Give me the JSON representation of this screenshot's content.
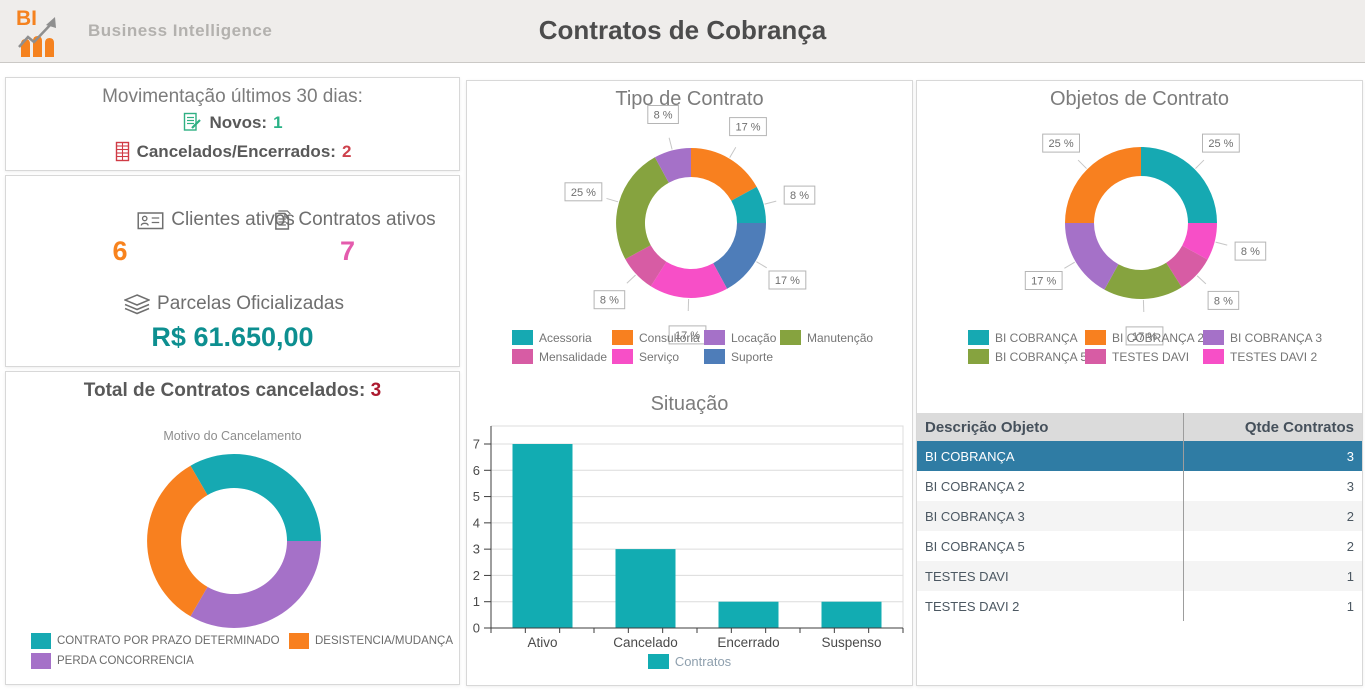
{
  "header": {
    "logo_text": "BI",
    "brand": "Business Intelligence",
    "title": "Contratos de Cobrança"
  },
  "colors": {
    "teal": "#16A9B2",
    "orange": "#F8801F",
    "purple": "#A571C8",
    "green": "#86A33F",
    "rose": "#D75CA4",
    "magenta": "#F74FC7",
    "blue": "#4E7DB9",
    "selected_row_bg": "#2F7CA4",
    "novos_green": "#29B286",
    "cancelados_red": "#CE414C",
    "total_cancelados_red": "#AC1A2F",
    "clientes_orange": "#F8831D",
    "contratos_pink": "#E45BAD",
    "parcelas_teal": "#0D8F90"
  },
  "movimentacao": {
    "title": "Movimentação últimos 30 dias:",
    "novos_label": "Novos:",
    "novos_value": "1",
    "cancelados_label": "Cancelados/Encerrados:",
    "cancelados_value": "2"
  },
  "resumo": {
    "clientes_label": "Clientes ativos",
    "clientes_value": "6",
    "contratos_label": "Contratos ativos",
    "contratos_value": "7",
    "parcelas_label": "Parcelas Oficializadas",
    "parcelas_value": "R$ 61.650,00"
  },
  "cancelados_panel": {
    "title": "Total de Contratos cancelados:",
    "value": "3"
  },
  "chart_data": [
    {
      "id": "motivo_cancelamento",
      "type": "pie",
      "title": "Motivo do Cancelamento",
      "start_angle": -30,
      "slices": [
        {
          "label": "CONTRATO POR PRAZO DETERMINADO",
          "value": 1,
          "pct_label": "",
          "color": "#16A9B2"
        },
        {
          "label": "PERDA CONCORRENCIA",
          "value": 1,
          "pct_label": "",
          "color": "#A571C8"
        },
        {
          "label": "DESISTENCIA/MUDANÇA",
          "value": 1,
          "pct_label": "",
          "color": "#F8801F"
        }
      ],
      "legend": [
        {
          "label": "CONTRATO POR PRAZO DETERMINADO",
          "color": "#16A9B2"
        },
        {
          "label": "DESISTENCIA/MUDANÇA",
          "color": "#F8801F"
        },
        {
          "label": "PERDA CONCORRENCIA",
          "color": "#A571C8"
        }
      ]
    },
    {
      "id": "tipo_contrato",
      "type": "pie",
      "title": "Tipo de Contrato",
      "start_angle": 0,
      "slices": [
        {
          "label": "Consultoria",
          "value": 17,
          "pct_label": "17 %",
          "color": "#F8801F"
        },
        {
          "label": "Acessoria",
          "value": 8,
          "pct_label": "8 %",
          "color": "#16A9B2"
        },
        {
          "label": "Suporte",
          "value": 17,
          "pct_label": "17 %",
          "color": "#4E7DB9"
        },
        {
          "label": "Serviço",
          "value": 17,
          "pct_label": "17 %",
          "color": "#F74FC7"
        },
        {
          "label": "Mensalidade",
          "value": 8,
          "pct_label": "8 %",
          "color": "#D75CA4"
        },
        {
          "label": "Manutenção",
          "value": 25,
          "pct_label": "25 %",
          "color": "#86A33F"
        },
        {
          "label": "Locação",
          "value": 8,
          "pct_label": "8 %",
          "color": "#A571C8"
        }
      ],
      "legend": [
        {
          "label": "Acessoria",
          "color": "#16A9B2"
        },
        {
          "label": "Consultoria",
          "color": "#F8801F"
        },
        {
          "label": "Locação",
          "color": "#A571C8"
        },
        {
          "label": "Manutenção",
          "color": "#86A33F"
        },
        {
          "label": "Mensalidade",
          "color": "#D75CA4"
        },
        {
          "label": "Serviço",
          "color": "#F74FC7"
        },
        {
          "label": "Suporte",
          "color": "#4E7DB9"
        }
      ]
    },
    {
      "id": "objetos_contrato",
      "type": "pie",
      "title": "Objetos de Contrato",
      "start_angle": 0,
      "slices": [
        {
          "label": "BI COBRANÇA",
          "value": 25,
          "pct_label": "25 %",
          "color": "#16A9B2"
        },
        {
          "label": "TESTES DAVI 2",
          "value": 8,
          "pct_label": "8 %",
          "color": "#F74FC7"
        },
        {
          "label": "TESTES DAVI",
          "value": 8,
          "pct_label": "8 %",
          "color": "#D75CA4"
        },
        {
          "label": "BI COBRANÇA 5",
          "value": 17,
          "pct_label": "17 %",
          "color": "#86A33F"
        },
        {
          "label": "BI COBRANÇA 3",
          "value": 17,
          "pct_label": "17 %",
          "color": "#A571C8"
        },
        {
          "label": "BI COBRANÇA 2",
          "value": 25,
          "pct_label": "25 %",
          "color": "#F8801F"
        }
      ],
      "legend": [
        {
          "label": "BI COBRANÇA",
          "color": "#16A9B2"
        },
        {
          "label": "BI COBRANÇA 2",
          "color": "#F8801F"
        },
        {
          "label": "BI COBRANÇA 3",
          "color": "#A571C8"
        },
        {
          "label": "BI COBRANÇA 5",
          "color": "#86A33F"
        },
        {
          "label": "TESTES DAVI",
          "color": "#D75CA4"
        },
        {
          "label": "TESTES DAVI 2",
          "color": "#F74FC7"
        }
      ]
    },
    {
      "id": "situacao",
      "type": "bar",
      "title": "Situação",
      "categories": [
        "Ativo",
        "Cancelado",
        "Encerrado",
        "Suspenso"
      ],
      "values": [
        7,
        3,
        1,
        1
      ],
      "ylim": [
        0,
        7
      ],
      "yticks": [
        0,
        1,
        2,
        3,
        4,
        5,
        6,
        7
      ],
      "bar_color": "#12ACB2",
      "grid": true,
      "legend": [
        {
          "label": "Contratos",
          "color": "#12ACB2"
        }
      ]
    }
  ],
  "table": {
    "headers": [
      "Descrição Objeto",
      "Qtde Contratos"
    ],
    "rows": [
      [
        "BI COBRANÇA",
        "3"
      ],
      [
        "BI COBRANÇA 2",
        "3"
      ],
      [
        "BI COBRANÇA 3",
        "2"
      ],
      [
        "BI COBRANÇA 5",
        "2"
      ],
      [
        "TESTES DAVI",
        "1"
      ],
      [
        "TESTES DAVI 2",
        "1"
      ]
    ],
    "selected_row": 0
  }
}
